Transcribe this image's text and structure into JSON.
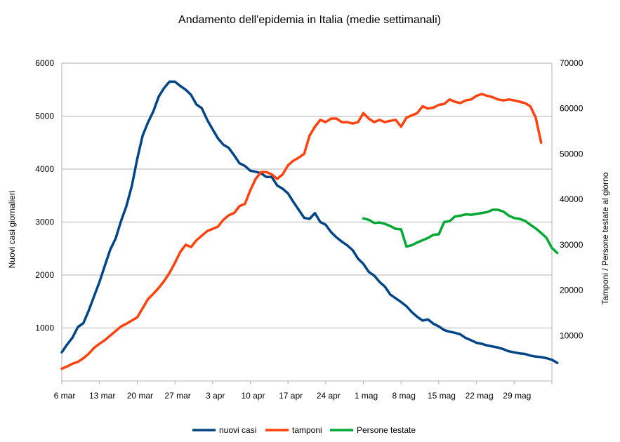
{
  "chart_data": {
    "type": "line",
    "title": "Andamento dell'epidemia in Italia (medie settimanali)",
    "ylabel_left": "Nuovi casi giornalieri",
    "ylabel_right": "Tamponi / Persone testate al giorno",
    "x_ticks": [
      "6 mar",
      "13 mar",
      "20 mar",
      "27 mar",
      "3 apr",
      "10 apr",
      "17 apr",
      "24 apr",
      "1 mag",
      "8 mag",
      "15 mag",
      "22 mag",
      "29 mag"
    ],
    "ylim_left": [
      0,
      6000
    ],
    "yticks_left": [
      "6000",
      "5000",
      "4000",
      "3000",
      "2000",
      "1000"
    ],
    "ylim_right": [
      0,
      70000
    ],
    "yticks_right": [
      "70000",
      "60000",
      "50000",
      "40000",
      "30000",
      "20000",
      "10000"
    ],
    "legend_position": "bottom",
    "grid": true,
    "x_start_day": "6 mar",
    "series": [
      {
        "name": "nuovi casi",
        "axis": "left",
        "color": "#004586",
        "values": [
          540,
          690,
          820,
          1020,
          1090,
          1330,
          1600,
          1870,
          2180,
          2480,
          2690,
          3020,
          3300,
          3680,
          4190,
          4630,
          4880,
          5090,
          5370,
          5530,
          5650,
          5650,
          5570,
          5500,
          5400,
          5220,
          5150,
          4930,
          4750,
          4580,
          4460,
          4400,
          4260,
          4110,
          4060,
          3970,
          3950,
          3920,
          3850,
          3850,
          3690,
          3630,
          3540,
          3380,
          3230,
          3080,
          3060,
          3170,
          3000,
          2950,
          2810,
          2710,
          2630,
          2560,
          2470,
          2310,
          2210,
          2060,
          1990,
          1870,
          1780,
          1630,
          1560,
          1490,
          1410,
          1300,
          1210,
          1140,
          1160,
          1080,
          1030,
          960,
          930,
          910,
          880,
          810,
          770,
          720,
          700,
          670,
          650,
          630,
          600,
          560,
          540,
          520,
          510,
          480,
          460,
          450,
          430,
          400,
          340
        ]
      },
      {
        "name": "tamponi",
        "axis": "right",
        "color": "#ff420e",
        "values": [
          2700,
          3200,
          3800,
          4200,
          5000,
          6000,
          7300,
          8200,
          9000,
          10000,
          11000,
          12000,
          12600,
          13300,
          14000,
          16000,
          18000,
          19200,
          20500,
          22000,
          23800,
          26000,
          28400,
          30000,
          29500,
          31000,
          32000,
          33000,
          33500,
          34000,
          35500,
          36500,
          37000,
          38500,
          39000,
          42000,
          44500,
          46000,
          46000,
          45500,
          44500,
          45500,
          47500,
          48500,
          49200,
          50000,
          54000,
          56000,
          57500,
          57000,
          57800,
          57800,
          57000,
          57000,
          56700,
          57000,
          59000,
          57800,
          57000,
          57500,
          57000,
          57300,
          57500,
          56000,
          58000,
          58500,
          59000,
          60500,
          60000,
          60200,
          60800,
          61000,
          62000,
          61500,
          61200,
          61800,
          62000,
          62800,
          63200,
          62800,
          62500,
          62000,
          61800,
          62000,
          61800,
          61500,
          61200,
          60500,
          58000,
          52500
        ]
      },
      {
        "name": "Persone testate",
        "axis": "right",
        "color": "#00a933",
        "x_offset": 56,
        "values": [
          35800,
          35500,
          34800,
          34900,
          34600,
          34100,
          33500,
          33400,
          29600,
          29900,
          30500,
          31000,
          31500,
          32200,
          32300,
          35000,
          35200,
          36200,
          36400,
          36700,
          36600,
          36800,
          37000,
          37200,
          37700,
          37700,
          37300,
          36400,
          35900,
          35700,
          35300,
          34400,
          33600,
          32600,
          31500,
          29300,
          28200
        ]
      }
    ]
  }
}
